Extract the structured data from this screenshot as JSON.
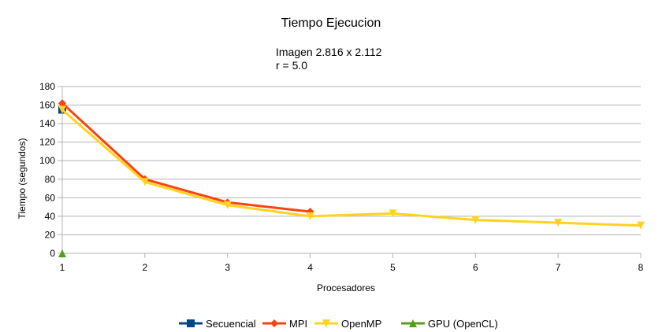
{
  "chart_data": {
    "type": "line",
    "title": "Tiempo Ejecucion",
    "subtitle_lines": [
      "Imagen 2.816 x 2.112",
      "r = 5.0"
    ],
    "xlabel": "Procesadores",
    "ylabel": "Tiempo (segundos)",
    "xlim": [
      1,
      8
    ],
    "ylim": [
      0,
      180
    ],
    "x_ticks": [
      1,
      2,
      3,
      4,
      5,
      6,
      7,
      8
    ],
    "y_ticks": [
      0,
      20,
      40,
      60,
      80,
      100,
      120,
      140,
      160,
      180
    ],
    "grid": "horizontal",
    "legend_position": "bottom",
    "series": [
      {
        "name": "Secuencial",
        "color": "#004586",
        "marker": "square",
        "x": [
          1
        ],
        "y": [
          155
        ]
      },
      {
        "name": "MPI",
        "color": "#ff420e",
        "marker": "diamond",
        "x": [
          1,
          2,
          3,
          4
        ],
        "y": [
          162,
          80,
          55,
          45
        ]
      },
      {
        "name": "OpenMP",
        "color": "#ffd320",
        "marker": "triangle-down",
        "x": [
          1,
          2,
          3,
          4,
          5,
          6,
          7,
          8
        ],
        "y": [
          155,
          77,
          52,
          40,
          43,
          36,
          33,
          30
        ]
      },
      {
        "name": "GPU (OpenCL)",
        "color": "#579d1c",
        "marker": "triangle-up",
        "x": [
          1
        ],
        "y": [
          0
        ]
      }
    ]
  }
}
